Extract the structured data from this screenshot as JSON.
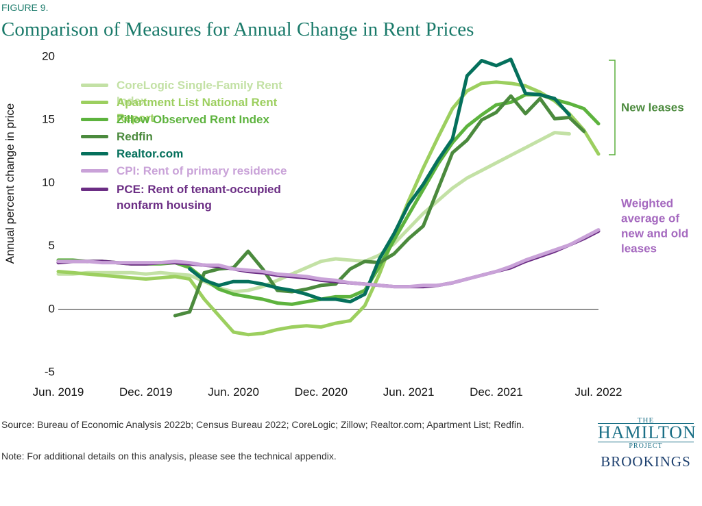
{
  "chart_data": {
    "type": "line",
    "figure_label": "FIGURE 9.",
    "title": "Comparison of Measures for Annual Change in Rent Prices",
    "y_label": "Annual percent change in price",
    "categories": [
      "Jun. 2019",
      null,
      null,
      null,
      null,
      null,
      "Dec. 2019",
      null,
      null,
      null,
      null,
      null,
      "Jun. 2020",
      null,
      null,
      null,
      null,
      null,
      "Dec. 2020",
      null,
      null,
      null,
      null,
      null,
      "Jun. 2021",
      null,
      null,
      null,
      null,
      null,
      "Dec. 2021",
      null,
      null,
      null,
      null,
      null,
      null,
      "Jul. 2022"
    ],
    "ylim": [
      -5,
      20
    ],
    "yticks": [
      -5,
      0,
      5,
      10,
      15,
      20
    ],
    "grid": false,
    "zero_line": true,
    "series": [
      {
        "name": "CoreLogic Single-Family Rent Index",
        "color": "#c3e1a5",
        "values": [
          2.8,
          2.8,
          2.9,
          2.9,
          2.9,
          2.9,
          2.8,
          2.9,
          2.8,
          2.7,
          2.2,
          1.7,
          1.4,
          1.5,
          1.8,
          2.3,
          2.8,
          3.3,
          3.8,
          4.0,
          3.9,
          3.8,
          4.3,
          5.2,
          6.4,
          7.6,
          8.6,
          9.6,
          10.4,
          11.0,
          11.6,
          12.2,
          12.8,
          13.4,
          14.0,
          13.9,
          null,
          null
        ]
      },
      {
        "name": "Apartment List National Rent Report",
        "color": "#9ccf5f",
        "values": [
          3.0,
          2.9,
          2.8,
          2.7,
          2.6,
          2.5,
          2.4,
          2.5,
          2.6,
          2.4,
          0.8,
          -0.5,
          -1.8,
          -2.0,
          -1.9,
          -1.6,
          -1.4,
          -1.3,
          -1.4,
          -1.1,
          -0.9,
          0.3,
          2.8,
          5.8,
          8.6,
          11.2,
          13.6,
          15.9,
          17.3,
          17.9,
          18.0,
          17.9,
          17.7,
          17.2,
          16.5,
          15.5,
          14.2,
          12.3
        ]
      },
      {
        "name": "Zillow Observed Rent Index",
        "color": "#5db33e",
        "values": [
          3.9,
          3.9,
          3.8,
          3.8,
          3.7,
          3.6,
          3.6,
          3.6,
          3.7,
          3.3,
          2.4,
          1.6,
          1.2,
          1.0,
          0.8,
          0.5,
          0.4,
          0.6,
          0.8,
          1.0,
          1.0,
          1.5,
          3.4,
          5.5,
          7.5,
          9.5,
          11.5,
          13.2,
          14.5,
          15.4,
          16.2,
          16.4,
          17.0,
          17.0,
          16.6,
          16.3,
          15.9,
          14.7
        ]
      },
      {
        "name": "Redfin",
        "color": "#4b8a3d",
        "values": [
          null,
          null,
          null,
          null,
          null,
          null,
          null,
          null,
          -0.5,
          -0.2,
          2.9,
          3.2,
          3.3,
          4.6,
          3.2,
          1.5,
          1.4,
          1.6,
          1.9,
          2.0,
          3.2,
          3.8,
          3.7,
          4.4,
          5.6,
          6.6,
          9.5,
          12.4,
          13.4,
          15.0,
          15.6,
          16.9,
          15.5,
          16.7,
          15.1,
          15.2,
          14.1,
          null
        ]
      },
      {
        "name": "Realtor.com",
        "color": "#05705c",
        "values": [
          null,
          null,
          null,
          null,
          null,
          null,
          null,
          null,
          null,
          3.2,
          2.3,
          1.9,
          2.2,
          2.2,
          2.0,
          1.7,
          1.5,
          1.2,
          0.8,
          0.8,
          0.6,
          1.2,
          4.0,
          6.0,
          8.3,
          9.9,
          11.8,
          13.5,
          18.5,
          19.7,
          19.3,
          19.8,
          17.1,
          17.0,
          16.7,
          15.4,
          null,
          null
        ]
      },
      {
        "name": "CPI: Rent of primary residence",
        "color": "#c9a2d8",
        "values": [
          3.8,
          3.8,
          3.8,
          3.7,
          3.7,
          3.7,
          3.7,
          3.7,
          3.8,
          3.7,
          3.5,
          3.5,
          3.2,
          3.1,
          3.0,
          2.8,
          2.7,
          2.6,
          2.4,
          2.3,
          2.1,
          2.0,
          1.9,
          1.8,
          1.8,
          1.9,
          1.9,
          2.1,
          2.4,
          2.7,
          3.0,
          3.4,
          3.9,
          4.3,
          4.7,
          5.1,
          5.7,
          6.3
        ]
      },
      {
        "name": "PCE: Rent of tenant-occupied nonfarm housing",
        "color": "#6b2d84",
        "values": [
          3.7,
          3.8,
          3.8,
          3.8,
          3.7,
          3.6,
          3.6,
          3.7,
          3.7,
          3.6,
          3.5,
          3.4,
          3.2,
          3.0,
          2.9,
          2.7,
          2.6,
          2.5,
          2.3,
          2.2,
          2.1,
          2.0,
          1.9,
          1.8,
          1.8,
          1.8,
          1.9,
          2.1,
          2.4,
          2.7,
          3.0,
          3.3,
          3.8,
          4.2,
          4.6,
          5.1,
          5.6,
          6.2
        ]
      }
    ],
    "annotations": [
      {
        "lines": [
          "New leases"
        ],
        "color": "#4b8a3d"
      },
      {
        "lines": [
          "Weighted",
          "average of",
          "new and old",
          "leases"
        ],
        "color": "#a569bf"
      }
    ],
    "source": "Source: Bureau of Economic Analysis 2022b; Census Bureau 2022; CoreLogic; Zillow; Realtor.com; Apartment List; Redfin.",
    "note": "Note: For additional details on this analysis, please see the technical appendix."
  },
  "logo": {
    "line1": "THE",
    "line2": "HAMILTON",
    "line3": "PROJECT",
    "line4": "BROOKINGS"
  }
}
